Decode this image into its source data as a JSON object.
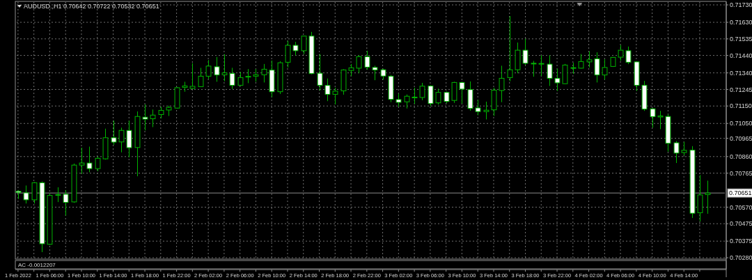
{
  "chart_data": {
    "type": "candlestick",
    "title": "AUDUSD.,H1 0.70642 0.70722 0.70532 0.70651",
    "color": "#00b400",
    "grid": true,
    "x": [
      "2022-02-01T02:00",
      "2022-02-01T03:00",
      "2022-02-01T04:00",
      "2022-02-01T05:00",
      "2022-02-01T06:00",
      "2022-02-01T07:00",
      "2022-02-01T08:00",
      "2022-02-01T09:00",
      "2022-02-01T10:00",
      "2022-02-01T11:00",
      "2022-02-01T12:00",
      "2022-02-01T13:00",
      "2022-02-01T14:00",
      "2022-02-01T15:00",
      "2022-02-01T16:00",
      "2022-02-01T17:00",
      "2022-02-01T18:00",
      "2022-02-01T19:00",
      "2022-02-01T20:00",
      "2022-02-01T21:00",
      "2022-02-01T22:00",
      "2022-02-01T23:00",
      "2022-02-02T00:00",
      "2022-02-02T01:00",
      "2022-02-02T02:00",
      "2022-02-02T03:00",
      "2022-02-02T04:00",
      "2022-02-02T05:00",
      "2022-02-02T06:00",
      "2022-02-02T07:00",
      "2022-02-02T08:00",
      "2022-02-02T09:00",
      "2022-02-02T10:00",
      "2022-02-02T11:00",
      "2022-02-02T12:00",
      "2022-02-02T13:00",
      "2022-02-02T14:00",
      "2022-02-02T15:00",
      "2022-02-02T16:00",
      "2022-02-02T17:00",
      "2022-02-02T18:00",
      "2022-02-02T19:00",
      "2022-02-02T20:00",
      "2022-02-02T21:00",
      "2022-02-02T22:00",
      "2022-02-02T23:00",
      "2022-02-03T00:00",
      "2022-02-03T01:00",
      "2022-02-03T02:00",
      "2022-02-03T03:00",
      "2022-02-03T04:00",
      "2022-02-03T05:00",
      "2022-02-03T06:00",
      "2022-02-03T07:00",
      "2022-02-03T08:00",
      "2022-02-03T09:00",
      "2022-02-03T10:00",
      "2022-02-03T11:00",
      "2022-02-03T12:00",
      "2022-02-03T13:00",
      "2022-02-03T14:00",
      "2022-02-03T15:00",
      "2022-02-03T16:00",
      "2022-02-03T17:00",
      "2022-02-03T18:00",
      "2022-02-03T19:00",
      "2022-02-03T20:00",
      "2022-02-03T21:00",
      "2022-02-03T22:00",
      "2022-02-03T23:00",
      "2022-02-04T00:00",
      "2022-02-04T01:00",
      "2022-02-04T02:00",
      "2022-02-04T03:00",
      "2022-02-04T04:00",
      "2022-02-04T05:00",
      "2022-02-04T06:00",
      "2022-02-04T07:00",
      "2022-02-04T08:00",
      "2022-02-04T09:00",
      "2022-02-04T10:00",
      "2022-02-04T11:00",
      "2022-02-04T12:00",
      "2022-02-04T13:00",
      "2022-02-04T14:00",
      "2022-02-04T15:00",
      "2022-02-04T16:00",
      "2022-02-04T17:00"
    ],
    "ohlc": [
      [
        0.70661,
        0.70668,
        0.70617,
        0.70654
      ],
      [
        0.70652,
        0.70694,
        0.70591,
        0.70612
      ],
      [
        0.70612,
        0.70714,
        0.70591,
        0.7071
      ],
      [
        0.7071,
        0.70717,
        0.70312,
        0.7036
      ],
      [
        0.70357,
        0.70648,
        0.70354,
        0.70637
      ],
      [
        0.7064,
        0.70684,
        0.70599,
        0.70642
      ],
      [
        0.70644,
        0.70668,
        0.70522,
        0.70597
      ],
      [
        0.706,
        0.7082,
        0.70595,
        0.70811
      ],
      [
        0.70811,
        0.70911,
        0.70761,
        0.70823
      ],
      [
        0.70823,
        0.70917,
        0.7077,
        0.70791
      ],
      [
        0.70791,
        0.7086,
        0.70776,
        0.7085
      ],
      [
        0.70847,
        0.7102,
        0.70843,
        0.70968
      ],
      [
        0.70968,
        0.71066,
        0.70927,
        0.70943
      ],
      [
        0.70944,
        0.71026,
        0.70884,
        0.7101
      ],
      [
        0.7101,
        0.71066,
        0.70856,
        0.70911
      ],
      [
        0.70912,
        0.71119,
        0.70747,
        0.7109
      ],
      [
        0.71086,
        0.71159,
        0.7101,
        0.71075
      ],
      [
        0.71077,
        0.7113,
        0.71029,
        0.71098
      ],
      [
        0.71101,
        0.71146,
        0.71079,
        0.71125
      ],
      [
        0.71127,
        0.71152,
        0.71093,
        0.71142
      ],
      [
        0.71138,
        0.71259,
        0.71135,
        0.71255
      ],
      [
        0.71257,
        0.71289,
        0.71232,
        0.71265
      ],
      [
        0.71251,
        0.71395,
        0.71248,
        0.71263
      ],
      [
        0.71261,
        0.71369,
        0.71259,
        0.71321
      ],
      [
        0.71321,
        0.71414,
        0.71305,
        0.71379
      ],
      [
        0.71375,
        0.71431,
        0.71289,
        0.71328
      ],
      [
        0.71329,
        0.71447,
        0.71292,
        0.7134
      ],
      [
        0.71337,
        0.71369,
        0.71248,
        0.71269
      ],
      [
        0.71269,
        0.71345,
        0.71265,
        0.71313
      ],
      [
        0.71317,
        0.71362,
        0.71281,
        0.7132
      ],
      [
        0.71321,
        0.71362,
        0.71289,
        0.71329
      ],
      [
        0.71329,
        0.71391,
        0.71285,
        0.71361
      ],
      [
        0.71356,
        0.71411,
        0.71201,
        0.71232
      ],
      [
        0.71232,
        0.71407,
        0.71219,
        0.71398
      ],
      [
        0.71401,
        0.71524,
        0.71371,
        0.71498
      ],
      [
        0.71498,
        0.71518,
        0.71441,
        0.71467
      ],
      [
        0.71467,
        0.71553,
        0.71448,
        0.71551
      ],
      [
        0.71551,
        0.71575,
        0.71332,
        0.71336
      ],
      [
        0.71338,
        0.71448,
        0.71239,
        0.71269
      ],
      [
        0.71268,
        0.71308,
        0.71178,
        0.71217
      ],
      [
        0.71217,
        0.71255,
        0.71159,
        0.71235
      ],
      [
        0.71237,
        0.71361,
        0.71215,
        0.71357
      ],
      [
        0.71354,
        0.71391,
        0.71321,
        0.71369
      ],
      [
        0.71367,
        0.71442,
        0.71338,
        0.71433
      ],
      [
        0.71433,
        0.71467,
        0.71358,
        0.71373
      ],
      [
        0.71371,
        0.71381,
        0.71298,
        0.71357
      ],
      [
        0.71358,
        0.71364,
        0.71301,
        0.71322
      ],
      [
        0.71321,
        0.71328,
        0.71172,
        0.71188
      ],
      [
        0.71187,
        0.71221,
        0.71146,
        0.71171
      ],
      [
        0.71174,
        0.71216,
        0.71136,
        0.71206
      ],
      [
        0.71199,
        0.71255,
        0.71162,
        0.71201
      ],
      [
        0.71199,
        0.71283,
        0.71183,
        0.71264
      ],
      [
        0.71265,
        0.71269,
        0.7115,
        0.71164
      ],
      [
        0.71168,
        0.71249,
        0.71158,
        0.71228
      ],
      [
        0.71228,
        0.71233,
        0.71166,
        0.71176
      ],
      [
        0.71182,
        0.71289,
        0.71168,
        0.71285
      ],
      [
        0.71285,
        0.71289,
        0.71163,
        0.71247
      ],
      [
        0.71244,
        0.71291,
        0.71123,
        0.71136
      ],
      [
        0.71139,
        0.71186,
        0.71097,
        0.71118
      ],
      [
        0.71118,
        0.71175,
        0.71073,
        0.71126
      ],
      [
        0.71128,
        0.71255,
        0.71093,
        0.71241
      ],
      [
        0.71239,
        0.71381,
        0.71172,
        0.71309
      ],
      [
        0.71313,
        0.71666,
        0.71292,
        0.71358
      ],
      [
        0.71358,
        0.71514,
        0.71338,
        0.7147
      ],
      [
        0.7147,
        0.71536,
        0.71385,
        0.71395
      ],
      [
        0.71395,
        0.71409,
        0.71318,
        0.71393
      ],
      [
        0.71391,
        0.71441,
        0.71322,
        0.71394
      ],
      [
        0.7139,
        0.71441,
        0.71265,
        0.71309
      ],
      [
        0.71309,
        0.71365,
        0.71236,
        0.71283
      ],
      [
        0.71278,
        0.71391,
        0.71276,
        0.71385
      ],
      [
        0.71366,
        0.71398,
        0.71334,
        0.7137
      ],
      [
        0.71367,
        0.71448,
        0.71365,
        0.71405
      ],
      [
        0.71403,
        0.71464,
        0.71371,
        0.71415
      ],
      [
        0.71421,
        0.71458,
        0.71285,
        0.71328
      ],
      [
        0.71328,
        0.71418,
        0.71302,
        0.71371
      ],
      [
        0.71377,
        0.71431,
        0.71374,
        0.71429
      ],
      [
        0.7143,
        0.715,
        0.71409,
        0.7147
      ],
      [
        0.71467,
        0.71491,
        0.7139,
        0.71401
      ],
      [
        0.71403,
        0.71406,
        0.71236,
        0.71269
      ],
      [
        0.71269,
        0.71294,
        0.71122,
        0.71132
      ],
      [
        0.71134,
        0.71138,
        0.71026,
        0.71089
      ],
      [
        0.71087,
        0.71122,
        0.71017,
        0.71093
      ],
      [
        0.7109,
        0.71102,
        0.70888,
        0.70936
      ],
      [
        0.70939,
        0.70949,
        0.70823,
        0.7088
      ],
      [
        0.70883,
        0.70944,
        0.70867,
        0.70896
      ],
      [
        0.70897,
        0.7092,
        0.70508,
        0.70535
      ],
      [
        0.70538,
        0.70754,
        0.70488,
        0.7064
      ],
      [
        0.70642,
        0.70722,
        0.70532,
        0.70651
      ]
    ],
    "xlim": [
      "2022-02-01T01:50",
      "2022-02-04T19:10"
    ],
    "xticks": [
      {
        "value": "2022-02-01T02:00",
        "label": "1 Feb 2022"
      },
      {
        "value": "2022-02-01T04:00",
        "label": null
      },
      {
        "value": "2022-02-01T06:00",
        "label": "1 Feb 06:00"
      },
      {
        "value": "2022-02-01T08:00",
        "label": null
      },
      {
        "value": "2022-02-01T10:00",
        "label": "1 Feb 10:00"
      },
      {
        "value": "2022-02-01T12:00",
        "label": null
      },
      {
        "value": "2022-02-01T14:00",
        "label": "1 Feb 14:00"
      },
      {
        "value": "2022-02-01T16:00",
        "label": null
      },
      {
        "value": "2022-02-01T18:00",
        "label": "1 Feb 18:00"
      },
      {
        "value": "2022-02-01T20:00",
        "label": null
      },
      {
        "value": "2022-02-01T22:00",
        "label": "1 Feb 22:00"
      },
      {
        "value": "2022-02-02T00:00",
        "label": null
      },
      {
        "value": "2022-02-02T02:00",
        "label": "2 Feb 02:00"
      },
      {
        "value": "2022-02-02T04:00",
        "label": null
      },
      {
        "value": "2022-02-02T06:00",
        "label": "2 Feb 06:00"
      },
      {
        "value": "2022-02-02T08:00",
        "label": null
      },
      {
        "value": "2022-02-02T10:00",
        "label": "2 Feb 10:00"
      },
      {
        "value": "2022-02-02T12:00",
        "label": null
      },
      {
        "value": "2022-02-02T14:00",
        "label": "2 Feb 14:00"
      },
      {
        "value": "2022-02-02T16:00",
        "label": null
      },
      {
        "value": "2022-02-02T18:00",
        "label": "2 Feb 18:00"
      },
      {
        "value": "2022-02-02T20:00",
        "label": null
      },
      {
        "value": "2022-02-02T22:00",
        "label": "2 Feb 22:00"
      },
      {
        "value": "2022-02-03T00:00",
        "label": null
      },
      {
        "value": "2022-02-03T02:00",
        "label": "3 Feb 02:00"
      },
      {
        "value": "2022-02-03T04:00",
        "label": null
      },
      {
        "value": "2022-02-03T06:00",
        "label": "3 Feb 06:00"
      },
      {
        "value": "2022-02-03T08:00",
        "label": null
      },
      {
        "value": "2022-02-03T10:00",
        "label": "3 Feb 10:00"
      },
      {
        "value": "2022-02-03T12:00",
        "label": null
      },
      {
        "value": "2022-02-03T14:00",
        "label": "3 Feb 14:00"
      },
      {
        "value": "2022-02-03T16:00",
        "label": null
      },
      {
        "value": "2022-02-03T18:00",
        "label": "3 Feb 18:00"
      },
      {
        "value": "2022-02-03T20:00",
        "label": null
      },
      {
        "value": "2022-02-03T22:00",
        "label": "3 Feb 22:00"
      },
      {
        "value": "2022-02-04T00:00",
        "label": null
      },
      {
        "value": "2022-02-04T02:00",
        "label": "4 Feb 02:00"
      },
      {
        "value": "2022-02-04T04:00",
        "label": null
      },
      {
        "value": "2022-02-04T06:00",
        "label": "4 Feb 06:00"
      },
      {
        "value": "2022-02-04T08:00",
        "label": null
      },
      {
        "value": "2022-02-04T10:00",
        "label": "4 Feb 10:00"
      },
      {
        "value": "2022-02-04T12:00",
        "label": null
      },
      {
        "value": "2022-02-04T14:00",
        "label": "4 Feb 14:00"
      },
      {
        "value": "2022-02-04T16:00",
        "label": null
      }
    ],
    "ylim": [
      0.70272,
      0.71746
    ],
    "yticks": [
      {
        "value": 0.7173,
        "label": "0.71730"
      },
      {
        "value": 0.7163,
        "label": "0.71630"
      },
      {
        "value": 0.71535,
        "label": "0.71535"
      },
      {
        "value": 0.7144,
        "label": "0.71440"
      },
      {
        "value": 0.7134,
        "label": "0.71340"
      },
      {
        "value": 0.71245,
        "label": "0.71245"
      },
      {
        "value": 0.7115,
        "label": "0.71150"
      },
      {
        "value": 0.7105,
        "label": "0.71050"
      },
      {
        "value": 0.70965,
        "label": "0.70965"
      },
      {
        "value": 0.7086,
        "label": "0.70860"
      },
      {
        "value": 0.70765,
        "label": "0.70765"
      },
      {
        "value": 0.7057,
        "label": "0.70570"
      },
      {
        "value": 0.70475,
        "label": "0.70475"
      },
      {
        "value": 0.70375,
        "label": "0.70375"
      },
      {
        "value": 0.7028,
        "label": "0.70280"
      }
    ],
    "ref_lines": [
      {
        "axis": "y",
        "value": 0.70651,
        "label": "0.70651",
        "color": "#8c8c8c"
      }
    ],
    "annotations": [
      "AC -0.0012207"
    ]
  }
}
